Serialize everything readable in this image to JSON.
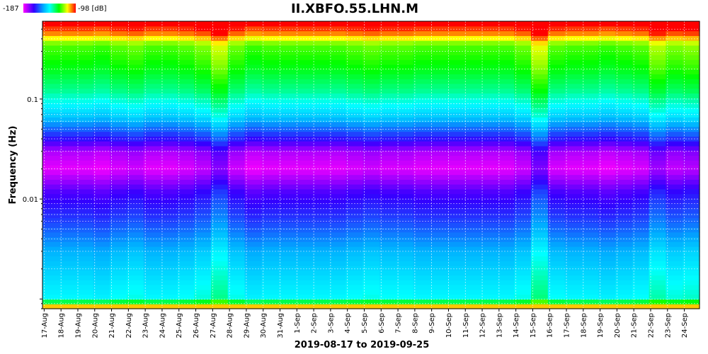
{
  "chart_data": {
    "type": "heatmap",
    "title": "II.XBFO.55.LHN.M",
    "xlabel": "2019-08-17 to 2019-09-25",
    "ylabel": "Frequency (Hz)",
    "y_scale": "log",
    "ylim": [
      0.0008,
      0.6
    ],
    "y_ticks": [
      {
        "value": 0.1,
        "label": "0.1"
      },
      {
        "value": 0.01,
        "label": "0.01"
      }
    ],
    "colorbar": {
      "min": -187,
      "max": -98,
      "min_label": "-187",
      "max_label": "-98 [dB]",
      "colormap": "rainbow"
    },
    "grid": true,
    "categories": [
      "17-Aug",
      "18-Aug",
      "19-Aug",
      "20-Aug",
      "21-Aug",
      "22-Aug",
      "23-Aug",
      "24-Aug",
      "25-Aug",
      "26-Aug",
      "27-Aug",
      "28-Aug",
      "29-Aug",
      "30-Aug",
      "31-Aug",
      "1-Sep",
      "2-Sep",
      "3-Sep",
      "4-Sep",
      "5-Sep",
      "6-Sep",
      "7-Sep",
      "8-Sep",
      "9-Sep",
      "10-Sep",
      "11-Sep",
      "12-Sep",
      "13-Sep",
      "14-Sep",
      "15-Sep",
      "16-Sep",
      "17-Sep",
      "18-Sep",
      "19-Sep",
      "20-Sep",
      "21-Sep",
      "22-Sep",
      "23-Sep",
      "24-Sep"
    ],
    "freq_profile": [
      {
        "freq": 0.55,
        "db": -98
      },
      {
        "freq": 0.45,
        "db": -106
      },
      {
        "freq": 0.35,
        "db": -122
      },
      {
        "freq": 0.2,
        "db": -128
      },
      {
        "freq": 0.12,
        "db": -136
      },
      {
        "freq": 0.09,
        "db": -143
      },
      {
        "freq": 0.065,
        "db": -150
      },
      {
        "freq": 0.05,
        "db": -160
      },
      {
        "freq": 0.04,
        "db": -168
      },
      {
        "freq": 0.03,
        "db": -180
      },
      {
        "freq": 0.02,
        "db": -185
      },
      {
        "freq": 0.012,
        "db": -172
      },
      {
        "freq": 0.006,
        "db": -163
      },
      {
        "freq": 0.003,
        "db": -152
      },
      {
        "freq": 0.0015,
        "db": -146
      },
      {
        "freq": 0.001,
        "db": -143
      },
      {
        "freq": 0.0008,
        "db": -98
      }
    ],
    "day_offsets_db": [
      0,
      0,
      0,
      -1,
      1,
      2,
      0,
      0,
      1,
      3,
      8,
      2,
      -1,
      0,
      0,
      0,
      0,
      0,
      1,
      2,
      1,
      1,
      0,
      0,
      0,
      0,
      0,
      0,
      2,
      9,
      1,
      0,
      0,
      -1,
      0,
      1,
      6,
      3,
      4
    ]
  }
}
